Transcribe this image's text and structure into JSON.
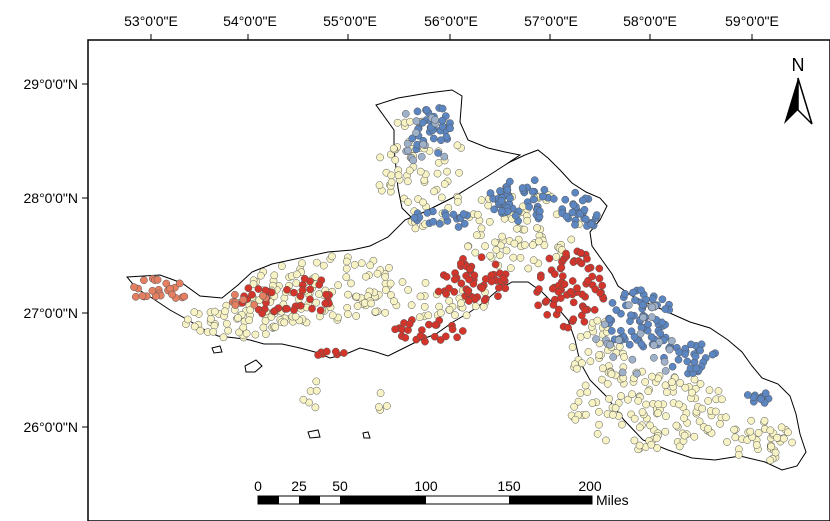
{
  "map": {
    "lon_labels": [
      "53°0'0\"E",
      "54°0'0\"E",
      "55°0'0\"E",
      "56°0'0\"E",
      "57°0'0\"E",
      "58°0'0\"E",
      "59°0'0\"E"
    ],
    "lat_labels": [
      "29°0'0\"N",
      "28°0'0\"N",
      "27°0'0\"N",
      "26°0'0\"N"
    ],
    "north_label": "N",
    "scale_labels": [
      "0",
      "25",
      "50",
      "100",
      "150",
      "200"
    ],
    "scale_unit": "Miles",
    "colors": {
      "outline": "#000000",
      "pale_yellow": "#f7f3c4",
      "pale_blue": "#9fb1c9",
      "blue": "#5b86c2",
      "red": "#d3352b",
      "salmon": "#e57f62"
    }
  }
}
